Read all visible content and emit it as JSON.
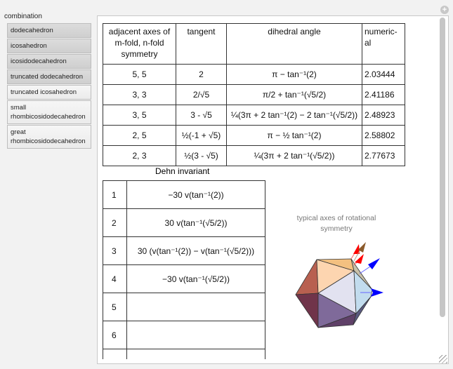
{
  "control": {
    "label": "combination",
    "options": [
      "dodecahedron",
      "icosahedron",
      "icosidodecahedron",
      "truncated dodecahedron",
      "truncated icosahedron",
      "small rhombicosidodecahedron",
      "great rhombicosidodecahedron"
    ],
    "selected": "truncated icosahedron"
  },
  "angles_table": {
    "headers": [
      "adjacent axes of m-fold, n-fold symmetry",
      "tangent",
      "dihedral angle",
      "numeric-al"
    ],
    "rows": [
      [
        "5, 5",
        "2",
        "π − tan⁻¹(2)",
        "2.03444"
      ],
      [
        "3, 3",
        "2/√5",
        "π/2 + tan⁻¹(√5/2)",
        "2.41186"
      ],
      [
        "3, 5",
        "3 - √5",
        "¼(3π + 2 tan⁻¹(2) − 2 tan⁻¹(√5/2))",
        "2.48923"
      ],
      [
        "2, 5",
        "½(-1 + √5)",
        "π − ½ tan⁻¹(2)",
        "2.58802"
      ],
      [
        "2, 3",
        "½(3 - √5)",
        "¼(3π + 2 tan⁻¹(√5/2))",
        "2.77673"
      ]
    ]
  },
  "dehn": {
    "title": "Dehn invariant",
    "rows": [
      [
        "1",
        "−30 v(tan⁻¹(2))"
      ],
      [
        "2",
        "30 v(tan⁻¹(√5/2))"
      ],
      [
        "3",
        "30 (v(tan⁻¹(2)) − v(tan⁻¹(√5/2)))"
      ],
      [
        "4",
        "−30 v(tan⁻¹(√5/2))"
      ],
      [
        "5",
        ""
      ],
      [
        "6",
        ""
      ]
    ]
  },
  "figure": {
    "caption": "typical axes of rotational symmetry",
    "arrow_colors": {
      "fivefold": "#ff0000",
      "threefold": "#0000ff",
      "twofold": "#8b5a2b"
    }
  }
}
